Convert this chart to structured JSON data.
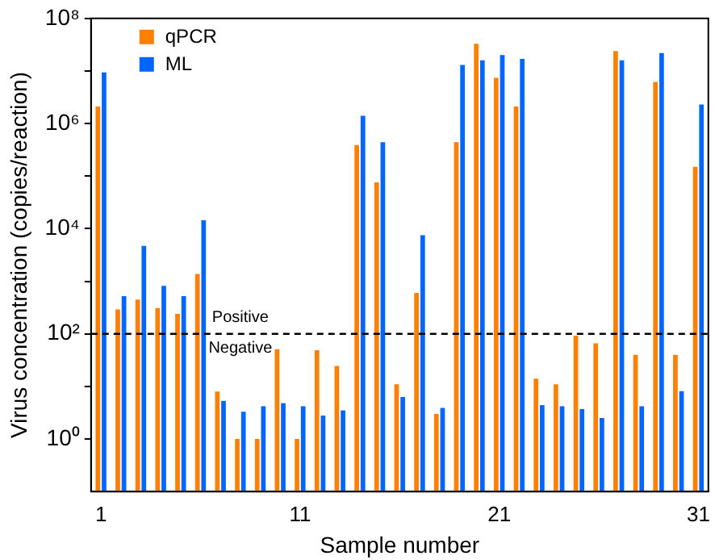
{
  "chart_data": {
    "type": "bar",
    "xlabel": "Sample number",
    "ylabel": "Virus concentration (copies/reaction)",
    "categories": [
      "1",
      null,
      null,
      null,
      null,
      null,
      null,
      null,
      null,
      null,
      "11",
      null,
      null,
      null,
      null,
      null,
      null,
      null,
      null,
      null,
      "21",
      null,
      null,
      null,
      null,
      null,
      null,
      null,
      null,
      null,
      "31"
    ],
    "series": [
      {
        "name": "qPCR",
        "color": "#ff8000",
        "values": [
          2100000,
          290,
          450,
          310,
          240,
          1380,
          8,
          1,
          1,
          51,
          1,
          49,
          24.5,
          390000,
          76000,
          11,
          600,
          3,
          440000,
          33000000,
          7400000,
          2100000,
          14,
          11,
          92,
          66,
          24000000,
          40,
          6200000,
          40,
          150000
        ]
      },
      {
        "name": "ML",
        "color": "#0066ff",
        "values": [
          9400000,
          520,
          4700,
          820,
          520,
          14500,
          5.3,
          3.3,
          4.2,
          4.8,
          4.2,
          2.8,
          3.5,
          1400000,
          440000,
          6.3,
          7500,
          3.9,
          13000000,
          16000000,
          20000000,
          17000000,
          4.4,
          4.2,
          3.7,
          2.5,
          16000000,
          4.2,
          22000000,
          8.1,
          2300000
        ]
      }
    ],
    "log": true,
    "ylim": [
      0.1,
      100000000
    ],
    "yticks": [
      {
        "value": 1,
        "label": "10⁰"
      },
      {
        "value": 10,
        "label": null
      },
      {
        "value": 100,
        "label": "10²"
      },
      {
        "value": 1000,
        "label": null
      },
      {
        "value": 10000,
        "label": "10⁴"
      },
      {
        "value": 100000,
        "label": null
      },
      {
        "value": 1000000,
        "label": "10⁶"
      },
      {
        "value": 10000000,
        "label": null
      },
      {
        "value": 100000000,
        "label": "10⁸"
      }
    ],
    "ref_lines": [
      {
        "axis": "y",
        "value": 100,
        "color": "#000000",
        "line_style": "dashed"
      }
    ],
    "annotations": [
      {
        "text": "Positive",
        "y": 100
      },
      {
        "text": "Negative",
        "y": 100
      }
    ],
    "grid": false,
    "legend": "top left"
  }
}
